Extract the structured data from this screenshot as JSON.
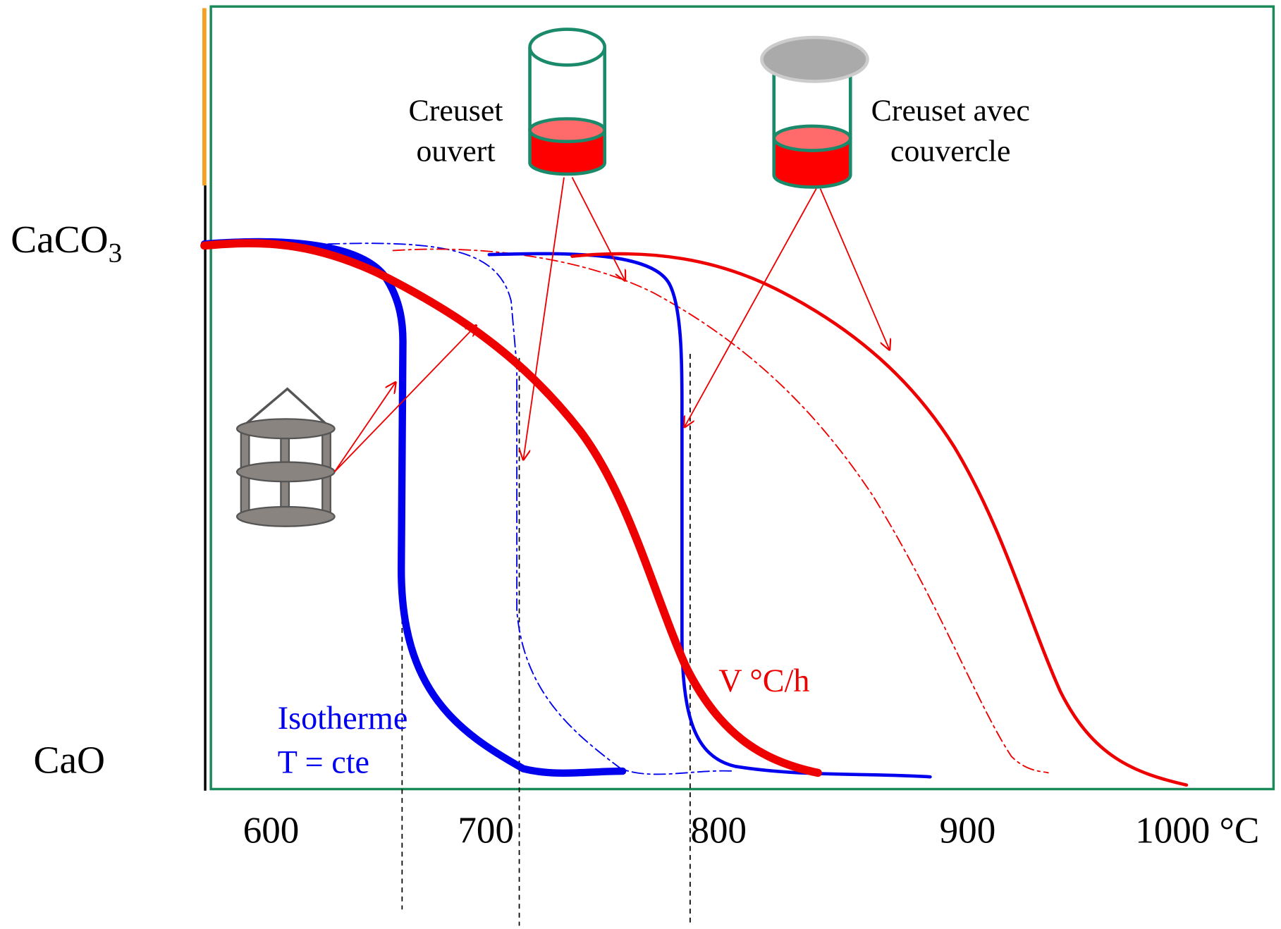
{
  "crucibles": {
    "open": {
      "lines": [
        "Creuset",
        "ouvert"
      ]
    },
    "covered": {
      "lines": [
        "Creuset avec",
        "couvercle"
      ]
    }
  },
  "y_labels": {
    "top": {
      "base": "CaCO",
      "subscript": "3"
    },
    "bottom": "CaO"
  },
  "annotations": {
    "isotherm": [
      "Isotherme",
      "T = cte"
    ],
    "heating_rate": "V °C/h"
  },
  "x_labels": [
    "600",
    "700",
    "800",
    "900",
    "1000 °C"
  ]
}
